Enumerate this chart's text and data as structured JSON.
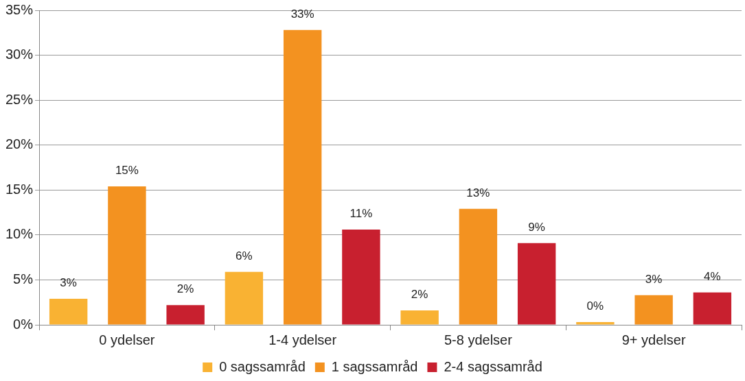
{
  "chart_data": {
    "type": "bar",
    "categories": [
      "0 ydelser",
      "1-4 ydelser",
      "5-8 ydelser",
      "9+ ydelser"
    ],
    "series": [
      {
        "name": "0 sagssamråd",
        "color": "#f9b233",
        "values": [
          2.9,
          5.9,
          1.6,
          0.3
        ],
        "value_labels": [
          "3%",
          "6%",
          "2%",
          "0%"
        ]
      },
      {
        "name": "1 sagssamråd",
        "color": "#f39220",
        "values": [
          15.4,
          32.8,
          12.9,
          3.3
        ],
        "value_labels": [
          "15%",
          "33%",
          "13%",
          "3%"
        ]
      },
      {
        "name": "2-4 sagssamråd",
        "color": "#c8202f",
        "values": [
          2.2,
          10.6,
          9.1,
          3.6
        ],
        "value_labels": [
          "2%",
          "11%",
          "9%",
          "4%"
        ]
      }
    ],
    "ylim": [
      0,
      35
    ],
    "yticks": [
      {
        "value": 0,
        "label": "0%"
      },
      {
        "value": 5,
        "label": "5%"
      },
      {
        "value": 10,
        "label": "10%"
      },
      {
        "value": 15,
        "label": "15%"
      },
      {
        "value": 20,
        "label": "20%"
      },
      {
        "value": 25,
        "label": "25%"
      },
      {
        "value": 30,
        "label": "30%"
      },
      {
        "value": 35,
        "label": "35%"
      }
    ],
    "grid": "y",
    "legend": "bottom"
  }
}
